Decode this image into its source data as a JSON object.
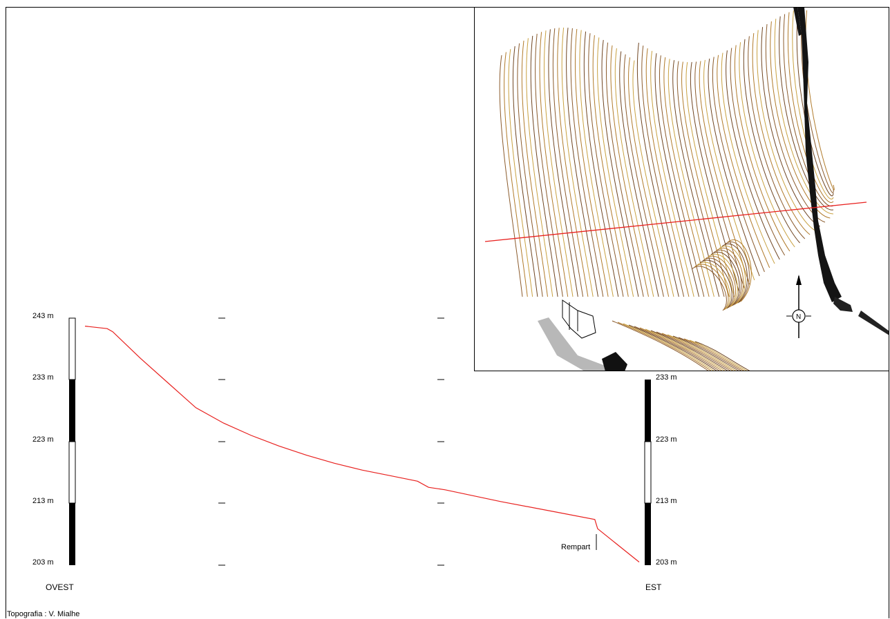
{
  "profile": {
    "scale_left": [
      "243 m",
      "233 m",
      "223 m",
      "213 m",
      "203 m"
    ],
    "scale_right": [
      "233 m",
      "223 m",
      "213 m",
      "203 m"
    ],
    "label_west": "OVEST",
    "label_east": "EST",
    "feature_label": "Rempart",
    "line_color": "#e8201e"
  },
  "map": {
    "north_label": "N",
    "section_line_color": "#e8201e",
    "contour_colors": [
      "#8a5a2b",
      "#b07a2a",
      "#c8a040",
      "#6e4420"
    ]
  },
  "credit": "Topografia : V. Mialhe",
  "chart_data": {
    "type": "line",
    "title": "",
    "xlabel": "",
    "ylabel": "",
    "ylim": [
      203,
      243
    ],
    "x_ends": [
      "OVEST",
      "EST"
    ],
    "series": [
      {
        "values": [
          [
            0.0,
            241.7
          ],
          [
            0.04,
            241.3
          ],
          [
            0.05,
            240.8
          ],
          [
            0.1,
            236.5
          ],
          [
            0.15,
            232.5
          ],
          [
            0.2,
            228.5
          ],
          [
            0.25,
            226.0
          ],
          [
            0.3,
            224.0
          ],
          [
            0.35,
            222.3
          ],
          [
            0.4,
            220.8
          ],
          [
            0.45,
            219.5
          ],
          [
            0.5,
            218.4
          ],
          [
            0.55,
            217.5
          ],
          [
            0.6,
            216.6
          ],
          [
            0.62,
            215.6
          ],
          [
            0.65,
            215.2
          ],
          [
            0.75,
            213.3
          ],
          [
            0.85,
            211.6
          ],
          [
            0.92,
            210.4
          ],
          [
            0.925,
            208.9
          ],
          [
            1.0,
            203.5
          ]
        ]
      }
    ]
  }
}
